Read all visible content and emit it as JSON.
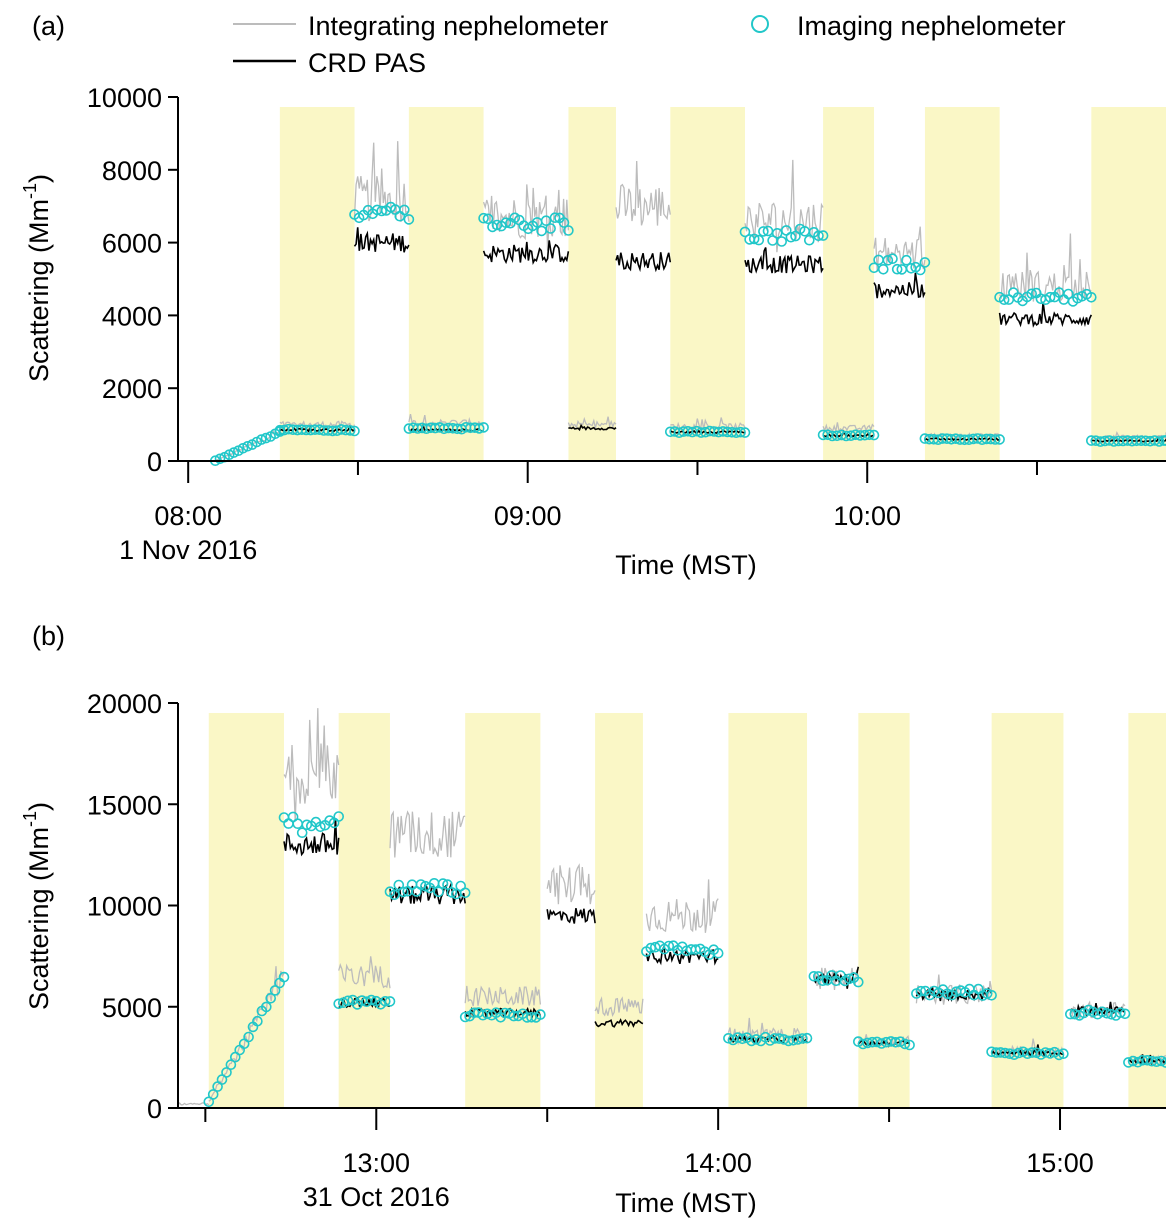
{
  "colors": {
    "integrating": "#bcbcbc",
    "crd_pas": "#000000",
    "imaging": "#21c7c9",
    "shade": "#faf7c6"
  },
  "legend": {
    "integrating": "Integrating nephelometer",
    "crd_pas": "CRD PAS",
    "imaging": "Imaging nephelometer"
  },
  "chart_data": [
    {
      "type": "line",
      "panel_label": "(a)",
      "xlabel": "Time (MST)",
      "ylabel": "Scattering (Mm",
      "ylabel_sup": "-1",
      "ylabel_close": ")",
      "xlim": [
        7.97,
        10.88
      ],
      "ylim": [
        0,
        10000
      ],
      "yticks": [
        {
          "v": 0,
          "label": "0"
        },
        {
          "v": 2000,
          "label": "2000"
        },
        {
          "v": 4000,
          "label": "4000"
        },
        {
          "v": 6000,
          "label": "6000"
        },
        {
          "v": 8000,
          "label": "8000"
        },
        {
          "v": 10000,
          "label": "10000"
        }
      ],
      "xticks_major": [
        {
          "v": 8.0,
          "label": "08:00",
          "sub": "1 Nov 2016"
        },
        {
          "v": 9.0,
          "label": "09:00",
          "sub": ""
        },
        {
          "v": 10.0,
          "label": "10:00",
          "sub": ""
        }
      ],
      "xticks_minor": [
        8.5,
        9.5,
        10.5
      ],
      "shaded": [
        [
          8.27,
          8.49
        ],
        [
          8.65,
          8.87
        ],
        [
          9.12,
          9.26
        ],
        [
          9.42,
          9.64
        ],
        [
          9.87,
          10.02
        ],
        [
          10.17,
          10.39
        ],
        [
          10.66,
          10.9
        ]
      ],
      "segments": [
        {
          "x0": 8.08,
          "x1": 8.27,
          "crd": null,
          "integ": 300,
          "imag": 400,
          "ramp": [
            0,
            800
          ]
        },
        {
          "x0": 8.27,
          "x1": 8.49,
          "crd": 850,
          "integ": 1000,
          "imag": 850
        },
        {
          "x0": 8.49,
          "x1": 8.65,
          "crd": 6000,
          "integ": 7200,
          "imag": 6800
        },
        {
          "x0": 8.65,
          "x1": 8.87,
          "crd": 850,
          "integ": 1050,
          "imag": 900
        },
        {
          "x0": 8.87,
          "x1": 9.12,
          "crd": 5700,
          "integ": 6700,
          "imag": 6500
        },
        {
          "x0": 9.12,
          "x1": 9.26,
          "crd": 900,
          "integ": 1000,
          "imag": null
        },
        {
          "x0": 9.26,
          "x1": 9.42,
          "crd": 5500,
          "integ": 7000,
          "imag": null
        },
        {
          "x0": 9.42,
          "x1": 9.64,
          "crd": 800,
          "integ": 950,
          "imag": 800
        },
        {
          "x0": 9.64,
          "x1": 9.87,
          "crd": 5400,
          "integ": 6600,
          "imag": 6200
        },
        {
          "x0": 9.87,
          "x1": 10.02,
          "crd": 700,
          "integ": 900,
          "imag": 700
        },
        {
          "x0": 10.02,
          "x1": 10.17,
          "crd": 4700,
          "integ": 5700,
          "imag": 5400
        },
        {
          "x0": 10.17,
          "x1": 10.39,
          "crd": 600,
          "integ": 700,
          "imag": 600
        },
        {
          "x0": 10.39,
          "x1": 10.66,
          "crd": 3900,
          "integ": 4800,
          "imag": 4500
        },
        {
          "x0": 10.66,
          "x1": 10.9,
          "crd": 550,
          "integ": 650,
          "imag": 550
        }
      ]
    },
    {
      "type": "line",
      "panel_label": "(b)",
      "xlabel": "Time (MST)",
      "ylabel": "Scattering (Mm",
      "ylabel_sup": "-1",
      "ylabel_close": ")",
      "xlim": [
        12.42,
        15.31
      ],
      "ylim": [
        0,
        20000
      ],
      "yticks": [
        {
          "v": 0,
          "label": "0"
        },
        {
          "v": 5000,
          "label": "5000"
        },
        {
          "v": 10000,
          "label": "10000"
        },
        {
          "v": 15000,
          "label": "15000"
        },
        {
          "v": 20000,
          "label": "20000"
        }
      ],
      "xticks_major": [
        {
          "v": 13.0,
          "label": "13:00",
          "sub": "31 Oct 2016"
        },
        {
          "v": 14.0,
          "label": "14:00",
          "sub": ""
        },
        {
          "v": 15.0,
          "label": "15:00",
          "sub": ""
        }
      ],
      "xticks_minor": [
        12.5,
        13.5,
        14.5
      ],
      "shaded": [
        [
          12.51,
          12.73
        ],
        [
          12.89,
          13.04
        ],
        [
          13.26,
          13.48
        ],
        [
          13.64,
          13.78
        ],
        [
          14.03,
          14.26
        ],
        [
          14.41,
          14.56
        ],
        [
          14.8,
          15.01
        ],
        [
          15.2,
          15.31
        ]
      ],
      "segments": [
        {
          "x0": 12.42,
          "x1": 12.51,
          "crd": null,
          "integ": 200,
          "imag": null
        },
        {
          "x0": 12.51,
          "x1": 12.73,
          "crd": null,
          "integ": 3500,
          "imag": 3500,
          "ramp": [
            300,
            6500
          ]
        },
        {
          "x0": 12.73,
          "x1": 12.89,
          "crd": 13000,
          "integ": 16500,
          "imag": 14000
        },
        {
          "x0": 12.89,
          "x1": 13.04,
          "crd": 5200,
          "integ": 6500,
          "imag": 5200
        },
        {
          "x0": 13.04,
          "x1": 13.26,
          "crd": 10500,
          "integ": 13500,
          "imag": 10800
        },
        {
          "x0": 13.26,
          "x1": 13.48,
          "crd": 4700,
          "integ": 5500,
          "imag": 4600
        },
        {
          "x0": 13.5,
          "x1": 13.64,
          "crd": 9500,
          "integ": 11000,
          "imag": null
        },
        {
          "x0": 13.64,
          "x1": 13.78,
          "crd": 4200,
          "integ": 5000,
          "imag": null
        },
        {
          "x0": 13.79,
          "x1": 14.0,
          "crd": 7500,
          "integ": 9500,
          "imag": 7800
        },
        {
          "x0": 14.03,
          "x1": 14.26,
          "crd": 3400,
          "integ": 3600,
          "imag": 3400
        },
        {
          "x0": 14.28,
          "x1": 14.41,
          "crd": 6400,
          "integ": 6400,
          "imag": 6400
        },
        {
          "x0": 14.41,
          "x1": 14.56,
          "crd": 3200,
          "integ": 3300,
          "imag": 3200
        },
        {
          "x0": 14.58,
          "x1": 14.8,
          "crd": 5600,
          "integ": 5600,
          "imag": 5700
        },
        {
          "x0": 14.8,
          "x1": 15.01,
          "crd": 2700,
          "integ": 2800,
          "imag": 2700
        },
        {
          "x0": 15.03,
          "x1": 15.19,
          "crd": 4800,
          "integ": 4800,
          "imag": 4700
        },
        {
          "x0": 15.2,
          "x1": 15.31,
          "crd": 2300,
          "integ": 2400,
          "imag": 2300
        }
      ]
    }
  ]
}
